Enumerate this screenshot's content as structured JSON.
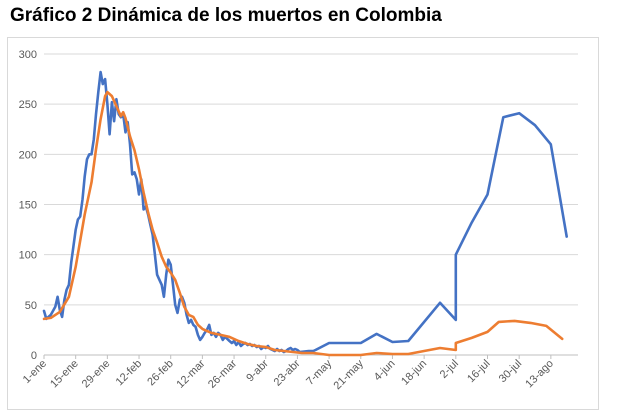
{
  "title": "Gráfico 2 Dinámica de los muertos en Colombia",
  "colors": {
    "series_blue": "#4472C4",
    "series_orange": "#ED7D31",
    "grid": "#d9d9d9",
    "axis": "#bfbfbf",
    "tick_text": "#595959"
  },
  "chart_data": {
    "type": "line",
    "title": "Gráfico 2 Dinámica de los muertos en Colombia",
    "xlabel": "",
    "ylabel": "",
    "ylim": [
      0,
      300
    ],
    "yticks": [
      0,
      50,
      100,
      150,
      200,
      250,
      300
    ],
    "grid": true,
    "legend": "none",
    "x_tick_labels": [
      "1-ene",
      "15-ene",
      "29-ene",
      "12-feb",
      "26-feb",
      "12-mar",
      "26-mar",
      "9-abr",
      "23-abr",
      "7-may",
      "21-may",
      "4-jun",
      "18-jun",
      "2-jul",
      "16-jul",
      "30-jul",
      "13-ago"
    ],
    "series": [
      {
        "color": "#4472C4",
        "points": [
          [
            "1-ene",
            44
          ],
          [
            "2-ene",
            36
          ],
          [
            "4-ene",
            40
          ],
          [
            "6-ene",
            48
          ],
          [
            "7-ene",
            58
          ],
          [
            "8-ene",
            45
          ],
          [
            "9-ene",
            38
          ],
          [
            "10-ene",
            55
          ],
          [
            "11-ene",
            65
          ],
          [
            "12-ene",
            70
          ],
          [
            "13-ene",
            92
          ],
          [
            "14-ene",
            108
          ],
          [
            "15-ene",
            125
          ],
          [
            "16-ene",
            135
          ],
          [
            "17-ene",
            138
          ],
          [
            "18-ene",
            155
          ],
          [
            "19-ene",
            178
          ],
          [
            "20-ene",
            195
          ],
          [
            "21-ene",
            200
          ],
          [
            "22-ene",
            200
          ],
          [
            "23-ene",
            215
          ],
          [
            "24-ene",
            240
          ],
          [
            "25-ene",
            262
          ],
          [
            "26-ene",
            282
          ],
          [
            "27-ene",
            270
          ],
          [
            "28-ene",
            275
          ],
          [
            "29-ene",
            250
          ],
          [
            "30-ene",
            220
          ],
          [
            "31-ene",
            252
          ],
          [
            "1-feb",
            233
          ],
          [
            "2-feb",
            255
          ],
          [
            "3-feb",
            240
          ],
          [
            "4-feb",
            237
          ],
          [
            "5-feb",
            240
          ],
          [
            "6-feb",
            222
          ],
          [
            "7-feb",
            232
          ],
          [
            "8-feb",
            210
          ],
          [
            "9-feb",
            180
          ],
          [
            "10-feb",
            182
          ],
          [
            "11-feb",
            175
          ],
          [
            "12-feb",
            160
          ],
          [
            "13-feb",
            175
          ],
          [
            "14-feb",
            145
          ],
          [
            "15-feb",
            148
          ],
          [
            "16-feb",
            140
          ],
          [
            "17-feb",
            130
          ],
          [
            "18-feb",
            120
          ],
          [
            "19-feb",
            100
          ],
          [
            "20-feb",
            80
          ],
          [
            "21-feb",
            75
          ],
          [
            "22-feb",
            70
          ],
          [
            "23-feb",
            58
          ],
          [
            "24-feb",
            80
          ],
          [
            "25-feb",
            95
          ],
          [
            "26-feb",
            90
          ],
          [
            "27-feb",
            70
          ],
          [
            "28-feb",
            50
          ],
          [
            "1-mar",
            42
          ],
          [
            "2-mar",
            55
          ],
          [
            "3-mar",
            58
          ],
          [
            "4-mar",
            52
          ],
          [
            "5-mar",
            40
          ],
          [
            "6-mar",
            32
          ],
          [
            "7-mar",
            35
          ],
          [
            "8-mar",
            30
          ],
          [
            "9-mar",
            28
          ],
          [
            "10-mar",
            20
          ],
          [
            "11-mar",
            15
          ],
          [
            "12-mar",
            18
          ],
          [
            "13-mar",
            22
          ],
          [
            "14-mar",
            25
          ],
          [
            "15-mar",
            30
          ],
          [
            "16-mar",
            20
          ],
          [
            "17-mar",
            22
          ],
          [
            "18-mar",
            18
          ],
          [
            "19-mar",
            22
          ],
          [
            "20-mar",
            20
          ],
          [
            "21-mar",
            15
          ],
          [
            "22-mar",
            18
          ],
          [
            "23-mar",
            16
          ],
          [
            "24-mar",
            14
          ],
          [
            "25-mar",
            12
          ],
          [
            "26-mar",
            14
          ],
          [
            "27-mar",
            10
          ],
          [
            "28-mar",
            13
          ],
          [
            "29-mar",
            9
          ],
          [
            "30-mar",
            11
          ],
          [
            "31-mar",
            12
          ],
          [
            "1-abr",
            10
          ],
          [
            "2-abr",
            11
          ],
          [
            "3-abr",
            9
          ],
          [
            "4-abr",
            10
          ],
          [
            "5-abr",
            8
          ],
          [
            "6-abr",
            9
          ],
          [
            "7-abr",
            6
          ],
          [
            "8-abr",
            8
          ],
          [
            "9-abr",
            7
          ],
          [
            "10-abr",
            9
          ],
          [
            "11-abr",
            6
          ],
          [
            "12-abr",
            5
          ],
          [
            "13-abr",
            4
          ],
          [
            "14-abr",
            6
          ],
          [
            "15-abr",
            4
          ],
          [
            "16-abr",
            5
          ],
          [
            "17-abr",
            3
          ],
          [
            "18-abr",
            4
          ],
          [
            "19-abr",
            6
          ],
          [
            "20-abr",
            7
          ],
          [
            "21-abr",
            5
          ],
          [
            "22-abr",
            6
          ],
          [
            "23-abr",
            5
          ],
          [
            "24-abr",
            3
          ],
          [
            "28-abr",
            4
          ],
          [
            "30-abr",
            4
          ],
          [
            "1-may",
            5
          ],
          [
            "7-may",
            12
          ],
          [
            "21-may",
            12
          ],
          [
            "28-may",
            21
          ],
          [
            "4-jun",
            13
          ],
          [
            "11-jun",
            14
          ],
          [
            "25-jun",
            52
          ],
          [
            "2-jul",
            35
          ],
          [
            "2-jul",
            100
          ],
          [
            "9-jul",
            132
          ],
          [
            "16-jul",
            160
          ],
          [
            "23-jul",
            237
          ],
          [
            "30-jul",
            241
          ],
          [
            "6-ago",
            229
          ],
          [
            "13-ago",
            210
          ],
          [
            "20-ago",
            118
          ]
        ]
      },
      {
        "color": "#ED7D31",
        "points": [
          [
            "1-ene",
            36
          ],
          [
            "4-ene",
            37
          ],
          [
            "8-ene",
            43
          ],
          [
            "12-ene",
            58
          ],
          [
            "15-ene",
            88
          ],
          [
            "19-ene",
            140
          ],
          [
            "22-ene",
            172
          ],
          [
            "24-ene",
            205
          ],
          [
            "26-ene",
            235
          ],
          [
            "28-ene",
            258
          ],
          [
            "29-ene",
            262
          ],
          [
            "31-ene",
            258
          ],
          [
            "2-feb",
            248
          ],
          [
            "4-feb",
            238
          ],
          [
            "5-feb",
            242
          ],
          [
            "6-feb",
            236
          ],
          [
            "8-feb",
            218
          ],
          [
            "10-feb",
            204
          ],
          [
            "12-feb",
            185
          ],
          [
            "14-feb",
            162
          ],
          [
            "16-feb",
            142
          ],
          [
            "18-feb",
            125
          ],
          [
            "20-feb",
            112
          ],
          [
            "22-feb",
            98
          ],
          [
            "24-feb",
            88
          ],
          [
            "26-feb",
            82
          ],
          [
            "28-feb",
            75
          ],
          [
            "2-mar",
            62
          ],
          [
            "4-mar",
            48
          ],
          [
            "6-mar",
            40
          ],
          [
            "8-mar",
            38
          ],
          [
            "10-mar",
            30
          ],
          [
            "12-mar",
            26
          ],
          [
            "16-mar",
            22
          ],
          [
            "20-mar",
            20
          ],
          [
            "24-mar",
            18
          ],
          [
            "28-mar",
            14
          ],
          [
            "1-abr",
            11
          ],
          [
            "5-abr",
            9
          ],
          [
            "9-abr",
            8
          ],
          [
            "13-abr",
            5
          ],
          [
            "17-abr",
            4
          ],
          [
            "21-abr",
            3
          ],
          [
            "25-abr",
            2
          ],
          [
            "30-abr",
            2
          ],
          [
            "7-may",
            0
          ],
          [
            "14-may",
            0
          ],
          [
            "21-may",
            0
          ],
          [
            "28-may",
            2
          ],
          [
            "4-jun",
            1
          ],
          [
            "11-jun",
            1
          ],
          [
            "18-jun",
            4
          ],
          [
            "25-jun",
            7
          ],
          [
            "2-jul",
            5
          ],
          [
            "2-jul",
            12
          ],
          [
            "9-jul",
            17
          ],
          [
            "16-jul",
            23
          ],
          [
            "21-jul",
            33
          ],
          [
            "28-jul",
            34
          ],
          [
            "4-ago",
            32
          ],
          [
            "11-ago",
            29
          ],
          [
            "18-ago",
            16
          ]
        ]
      }
    ]
  }
}
